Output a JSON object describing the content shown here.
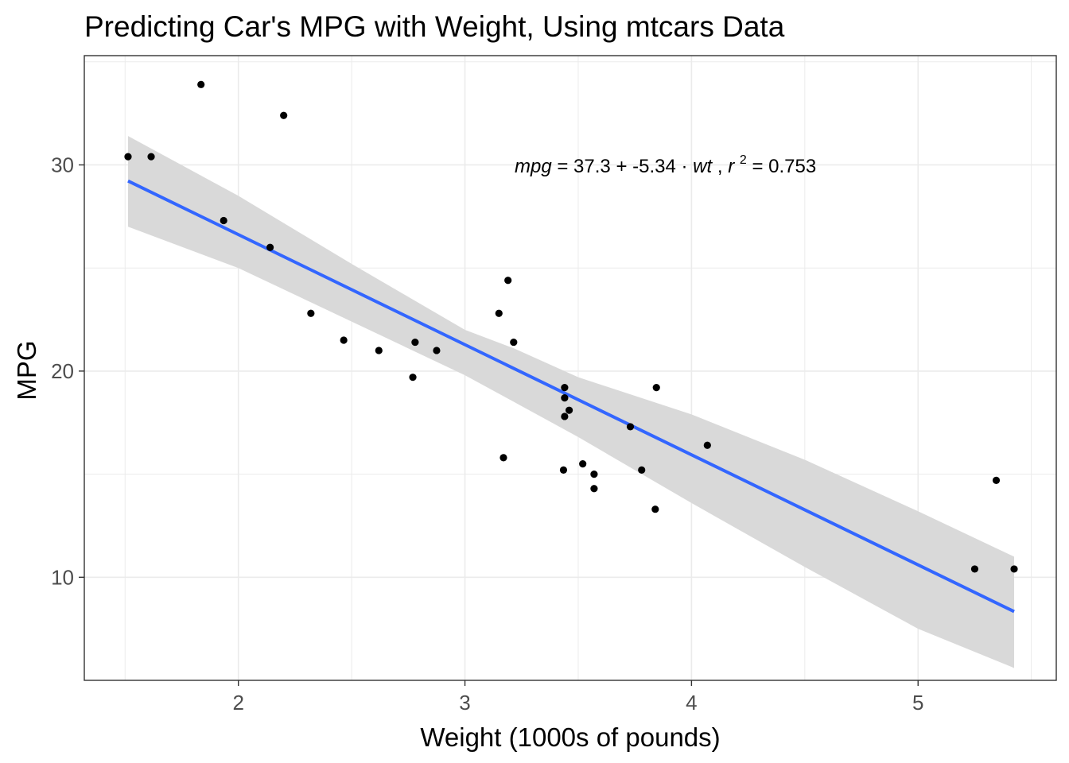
{
  "chart_data": {
    "type": "scatter",
    "title": "Predicting Car's MPG with Weight, Using mtcars Data",
    "xlabel": "Weight (1000s of pounds)",
    "ylabel": "MPG",
    "xlim": [
      1.32,
      5.61
    ],
    "ylim": [
      5.0,
      35.3
    ],
    "x_ticks": [
      2,
      3,
      4,
      5
    ],
    "y_ticks": [
      10,
      20,
      30
    ],
    "x_tick_labels": [
      "2",
      "3",
      "4",
      "5"
    ],
    "y_tick_labels": [
      "10",
      "20",
      "30"
    ],
    "x_minor_grid": [
      1.5,
      2.5,
      3.5,
      4.5,
      5.5
    ],
    "y_minor_grid": [
      5,
      15,
      25,
      35
    ],
    "grid": true,
    "colors": {
      "points": "#000000",
      "fit_line": "#3366ff",
      "ribbon": "#d9d9d9",
      "grid": "#ebebeb",
      "panel_border": "#333333"
    },
    "points": {
      "x": [
        1.513,
        1.615,
        1.835,
        1.935,
        2.14,
        2.2,
        2.32,
        2.465,
        2.62,
        2.77,
        2.78,
        2.875,
        3.15,
        3.17,
        3.19,
        3.215,
        3.435,
        3.44,
        3.44,
        3.44,
        3.46,
        3.52,
        3.57,
        3.57,
        3.73,
        3.78,
        3.84,
        3.845,
        4.07,
        5.25,
        5.345,
        5.424
      ],
      "y": [
        30.4,
        30.4,
        33.9,
        27.3,
        26.0,
        32.4,
        22.8,
        21.5,
        21.0,
        19.7,
        21.4,
        21.0,
        22.8,
        15.8,
        24.4,
        21.4,
        15.2,
        18.7,
        17.8,
        19.2,
        18.1,
        15.5,
        15.0,
        14.3,
        17.3,
        15.2,
        13.3,
        19.2,
        16.4,
        10.4,
        14.7,
        10.4
      ]
    },
    "fit": {
      "intercept": 37.3,
      "slope": -5.34,
      "x_range": [
        1.513,
        5.424
      ]
    },
    "confidence_band": {
      "x": [
        1.513,
        2.0,
        2.5,
        3.0,
        3.217,
        3.5,
        4.0,
        4.5,
        5.0,
        5.424
      ],
      "lower": [
        27.0,
        25.0,
        22.4,
        19.8,
        18.5,
        16.8,
        13.6,
        10.5,
        7.5,
        5.6
      ],
      "upper": [
        31.4,
        28.5,
        25.2,
        22.0,
        21.1,
        19.7,
        17.9,
        15.7,
        13.2,
        11.0
      ]
    },
    "annotation": {
      "lhs": "mpg",
      "eq": " = ",
      "intercept": "37.3",
      "plus": " + ",
      "coef": "-5.34",
      "dot": " · ",
      "var": "wt",
      "comma": ",  ",
      "r_sym": "r",
      "r_exp": "2",
      "r_eq": " = 0.753"
    }
  }
}
